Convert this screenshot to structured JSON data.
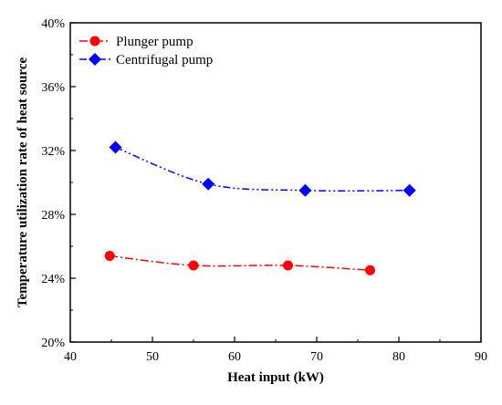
{
  "chart_data": {
    "type": "line",
    "title": "",
    "xlabel": "Heat input (kW)",
    "ylabel": "Temperature utilization rate of heat source",
    "xlim": [
      40,
      90
    ],
    "ylim": [
      20,
      40
    ],
    "x_ticks": [
      40,
      50,
      60,
      70,
      80,
      90
    ],
    "y_ticks": [
      20,
      24,
      28,
      32,
      36,
      40
    ],
    "x_tick_labels": [
      "40",
      "50",
      "60",
      "70",
      "80",
      "90"
    ],
    "y_tick_labels": [
      "20%",
      "24%",
      "28%",
      "32%",
      "36%",
      "40%"
    ],
    "grid": false,
    "legend_position": "top-left",
    "series": [
      {
        "name": "Plunger pump",
        "color": "#ff0000",
        "marker": "circle",
        "line_style": "dash-dot",
        "x": [
          44.8,
          55.0,
          66.5,
          76.5
        ],
        "y": [
          25.4,
          24.8,
          24.8,
          24.5
        ]
      },
      {
        "name": "Centrifugal pump",
        "color": "#0000ff",
        "marker": "diamond",
        "line_style": "dash-dot-dot",
        "x": [
          45.5,
          56.8,
          68.6,
          81.3
        ],
        "y": [
          32.2,
          29.9,
          29.5,
          29.5
        ]
      }
    ]
  }
}
